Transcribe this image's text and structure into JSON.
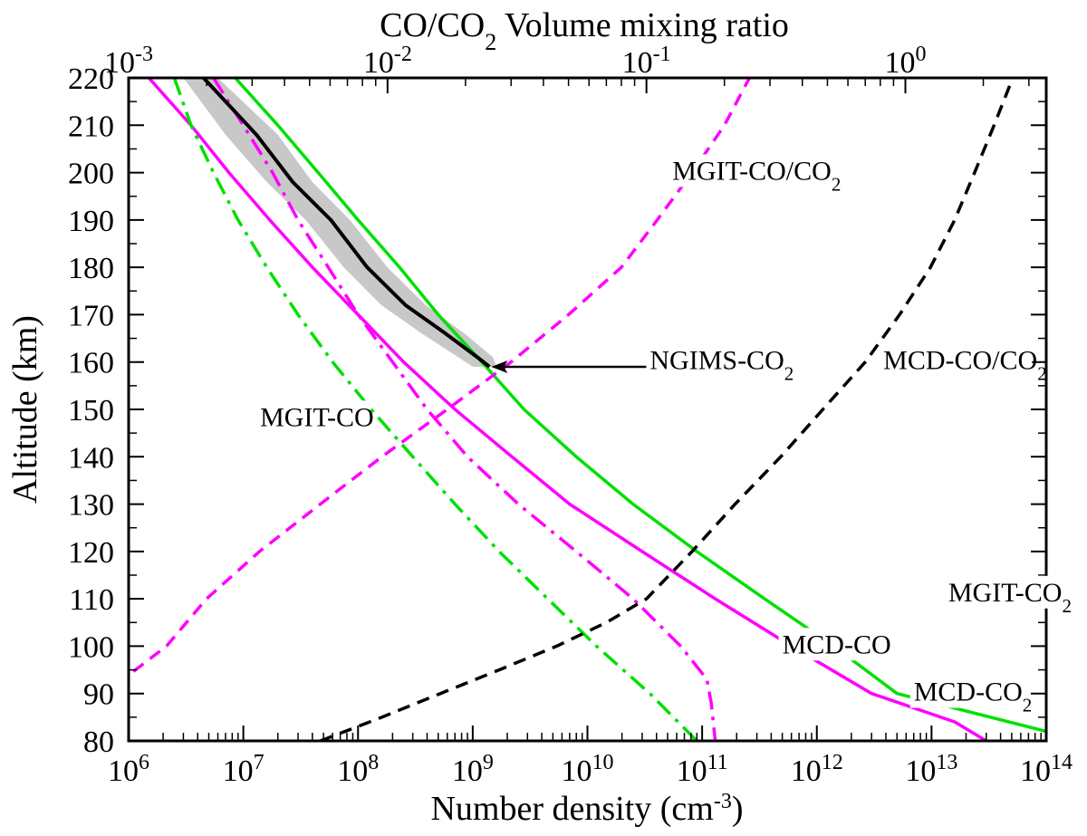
{
  "chart_data": {
    "type": "line",
    "title": "",
    "xlabel": "Number density (cm-3)",
    "xlabel_parts": {
      "base": "Number density (cm",
      "sup": "-3",
      "end": ")"
    },
    "x2label": "CO/CO2 Volume mixing ratio",
    "x2label_parts": {
      "a": "CO/CO",
      "sub": "2",
      "b": " Volume mixing ratio"
    },
    "ylabel": "Altitude (km)",
    "xscale": "log",
    "xlim": [
      1000000.0,
      100000000000000.0
    ],
    "x2scale": "log",
    "x2lim": [
      0.001,
      3.5
    ],
    "ylim": [
      80,
      220
    ],
    "x_ticks": [
      {
        "value": 1000000.0,
        "base": "10",
        "exp": "6"
      },
      {
        "value": 10000000.0,
        "base": "10",
        "exp": "7"
      },
      {
        "value": 100000000.0,
        "base": "10",
        "exp": "8"
      },
      {
        "value": 1000000000.0,
        "base": "10",
        "exp": "9"
      },
      {
        "value": 10000000000.0,
        "base": "10",
        "exp": "10"
      },
      {
        "value": 100000000000.0,
        "base": "10",
        "exp": "11"
      },
      {
        "value": 1000000000000.0,
        "base": "10",
        "exp": "12"
      },
      {
        "value": 10000000000000.0,
        "base": "10",
        "exp": "13"
      },
      {
        "value": 100000000000000.0,
        "base": "10",
        "exp": "14"
      }
    ],
    "x2_ticks": [
      {
        "value": 0.001,
        "base": "10",
        "exp": "-3"
      },
      {
        "value": 0.01,
        "base": "10",
        "exp": "-2"
      },
      {
        "value": 0.1,
        "base": "10",
        "exp": "-1"
      },
      {
        "value": 1,
        "base": "10",
        "exp": "0"
      }
    ],
    "y_ticks": [
      80,
      90,
      100,
      110,
      120,
      130,
      140,
      150,
      160,
      170,
      180,
      190,
      200,
      210,
      220
    ],
    "series": [
      {
        "name": "MGIT-CO2",
        "axis": "bottom",
        "color": "#00e000",
        "style": "solid",
        "points": [
          [
            8500000.0,
            220
          ],
          [
            20000000.0,
            210
          ],
          [
            45000000.0,
            200
          ],
          [
            100000000.0,
            190
          ],
          [
            230000000.0,
            180
          ],
          [
            500000000.0,
            170
          ],
          [
            1200000000.0,
            160
          ],
          [
            2800000000.0,
            150
          ],
          [
            8000000000.0,
            140
          ],
          [
            25000000000.0,
            130
          ],
          [
            90000000000.0,
            120
          ],
          [
            350000000000.0,
            110
          ],
          [
            1400000000000.0,
            100
          ],
          [
            5000000000000.0,
            90
          ],
          [
            100000000000000.0,
            82
          ]
        ]
      },
      {
        "name": "MCD-CO2",
        "axis": "bottom",
        "color": "#ff00ff",
        "style": "solid",
        "points": [
          [
            1500000.0,
            220
          ],
          [
            3500000.0,
            210
          ],
          [
            7500000.0,
            200
          ],
          [
            17000000.0,
            190
          ],
          [
            40000000.0,
            180
          ],
          [
            100000000.0,
            170
          ],
          [
            250000000.0,
            160
          ],
          [
            700000000.0,
            150
          ],
          [
            2200000000.0,
            140
          ],
          [
            7000000000.0,
            130
          ],
          [
            30000000000.0,
            120
          ],
          [
            130000000000.0,
            110
          ],
          [
            600000000000.0,
            100
          ],
          [
            3000000000000.0,
            90
          ],
          [
            16000000000000.0,
            84
          ],
          [
            30000000000000.0,
            80
          ]
        ]
      },
      {
        "name": "MGIT-CO",
        "axis": "bottom",
        "color": "#00e000",
        "style": "dashdot",
        "points": [
          [
            2500000.0,
            220
          ],
          [
            3500000.0,
            210
          ],
          [
            5500000.0,
            200
          ],
          [
            9000000.0,
            190
          ],
          [
            16000000.0,
            180
          ],
          [
            30000000.0,
            170
          ],
          [
            60000000.0,
            160
          ],
          [
            130000000.0,
            150
          ],
          [
            300000000.0,
            140
          ],
          [
            700000000.0,
            130
          ],
          [
            1700000000.0,
            120
          ],
          [
            4500000000.0,
            110
          ],
          [
            12000000000.0,
            100
          ],
          [
            35000000000.0,
            90
          ],
          [
            90000000000.0,
            80
          ]
        ]
      },
      {
        "name": "MCD-CO",
        "axis": "bottom",
        "color": "#ff00ff",
        "style": "dashdot",
        "points": [
          [
            5500000.0,
            220
          ],
          [
            10000000.0,
            210
          ],
          [
            18000000.0,
            200
          ],
          [
            30000000.0,
            190
          ],
          [
            55000000.0,
            180
          ],
          [
            100000000.0,
            170
          ],
          [
            200000000.0,
            160
          ],
          [
            400000000.0,
            150
          ],
          [
            900000000.0,
            140
          ],
          [
            2500000000.0,
            130
          ],
          [
            8000000000.0,
            120
          ],
          [
            25000000000.0,
            110
          ],
          [
            65000000000.0,
            100
          ],
          [
            110000000000.0,
            93
          ],
          [
            120000000000.0,
            88
          ],
          [
            130000000000.0,
            80
          ]
        ]
      },
      {
        "name": "MGIT-CO/CO2",
        "axis": "top",
        "color": "#ff00ff",
        "style": "dashed",
        "points": [
          [
            0.0009,
            92
          ],
          [
            0.0014,
            100
          ],
          [
            0.002,
            110
          ],
          [
            0.0032,
            120
          ],
          [
            0.0055,
            130
          ],
          [
            0.0095,
            140
          ],
          [
            0.017,
            150
          ],
          [
            0.03,
            160
          ],
          [
            0.05,
            170
          ],
          [
            0.08,
            180
          ],
          [
            0.11,
            190
          ],
          [
            0.15,
            200
          ],
          [
            0.2,
            210
          ],
          [
            0.25,
            220
          ]
        ]
      },
      {
        "name": "MCD-CO/CO2",
        "axis": "top",
        "color": "#000000",
        "style": "dashed",
        "points": [
          [
            0.0055,
            80
          ],
          [
            0.0095,
            85
          ],
          [
            0.016,
            90
          ],
          [
            0.027,
            95
          ],
          [
            0.045,
            100
          ],
          [
            0.07,
            105
          ],
          [
            0.1,
            110
          ],
          [
            0.15,
            120
          ],
          [
            0.22,
            130
          ],
          [
            0.33,
            140
          ],
          [
            0.48,
            150
          ],
          [
            0.7,
            160
          ],
          [
            0.95,
            170
          ],
          [
            1.25,
            180
          ],
          [
            1.55,
            190
          ],
          [
            1.85,
            200
          ],
          [
            2.2,
            210
          ],
          [
            2.6,
            220
          ]
        ]
      },
      {
        "name": "NGIMS-CO2",
        "axis": "bottom",
        "color": "#000000",
        "style": "solid",
        "band_color": "#c8c8c8",
        "points": [
          [
            4500000.0,
            220
          ],
          [
            13000000.0,
            208
          ],
          [
            27000000.0,
            198
          ],
          [
            58000000.0,
            190
          ],
          [
            120000000.0,
            180
          ],
          [
            260000000.0,
            172
          ],
          [
            580000000.0,
            166
          ],
          [
            1100000000.0,
            161
          ],
          [
            1400000000.0,
            159
          ]
        ],
        "band": [
          [
            3000000.0,
            6000000.0,
            220
          ],
          [
            7000000.0,
            20000000.0,
            208
          ],
          [
            16000000.0,
            40000000.0,
            198
          ],
          [
            35000000.0,
            85000000.0,
            190
          ],
          [
            75000000.0,
            180000000.0,
            180
          ],
          [
            160000000.0,
            390000000.0,
            172
          ],
          [
            360000000.0,
            850000000.0,
            166
          ],
          [
            750000000.0,
            1500000000.0,
            161
          ],
          [
            1000000000.0,
            1600000000.0,
            159
          ]
        ]
      }
    ],
    "labels": [
      {
        "key": "mgit_co_co2",
        "main": "MGIT-CO/CO",
        "sub": "2",
        "x": 55000000000.0,
        "y": 198.5
      },
      {
        "key": "ngims_co2",
        "main": "NGIMS-CO",
        "sub": "2",
        "x": 35000000000.0,
        "y": 158.5
      },
      {
        "key": "mcd_co_co2",
        "main": "MCD-CO/CO",
        "sub": "2",
        "x": 3800000000000.0,
        "y": 158.5
      },
      {
        "key": "mgit_co",
        "main": "MGIT-CO",
        "sub": "",
        "x": 14000000.0,
        "y": 146.5
      },
      {
        "key": "mgit_co2",
        "main": "MGIT-CO",
        "sub": "2",
        "x": 14000000000000.0,
        "y": 109.5
      },
      {
        "key": "mcd_co",
        "main": "MCD-CO",
        "sub": "",
        "x": 500000000000.0,
        "y": 98.5
      },
      {
        "key": "mcd_co2_label",
        "main": "MCD-CO",
        "sub": "2",
        "x": 7000000000000.0,
        "y": 88.5
      }
    ],
    "arrow": {
      "from": [
        35000000000.0,
        159
      ],
      "to": [
        1450000000.0,
        159
      ],
      "color": "#000000"
    },
    "grid": false,
    "legend": "inline-labels"
  }
}
